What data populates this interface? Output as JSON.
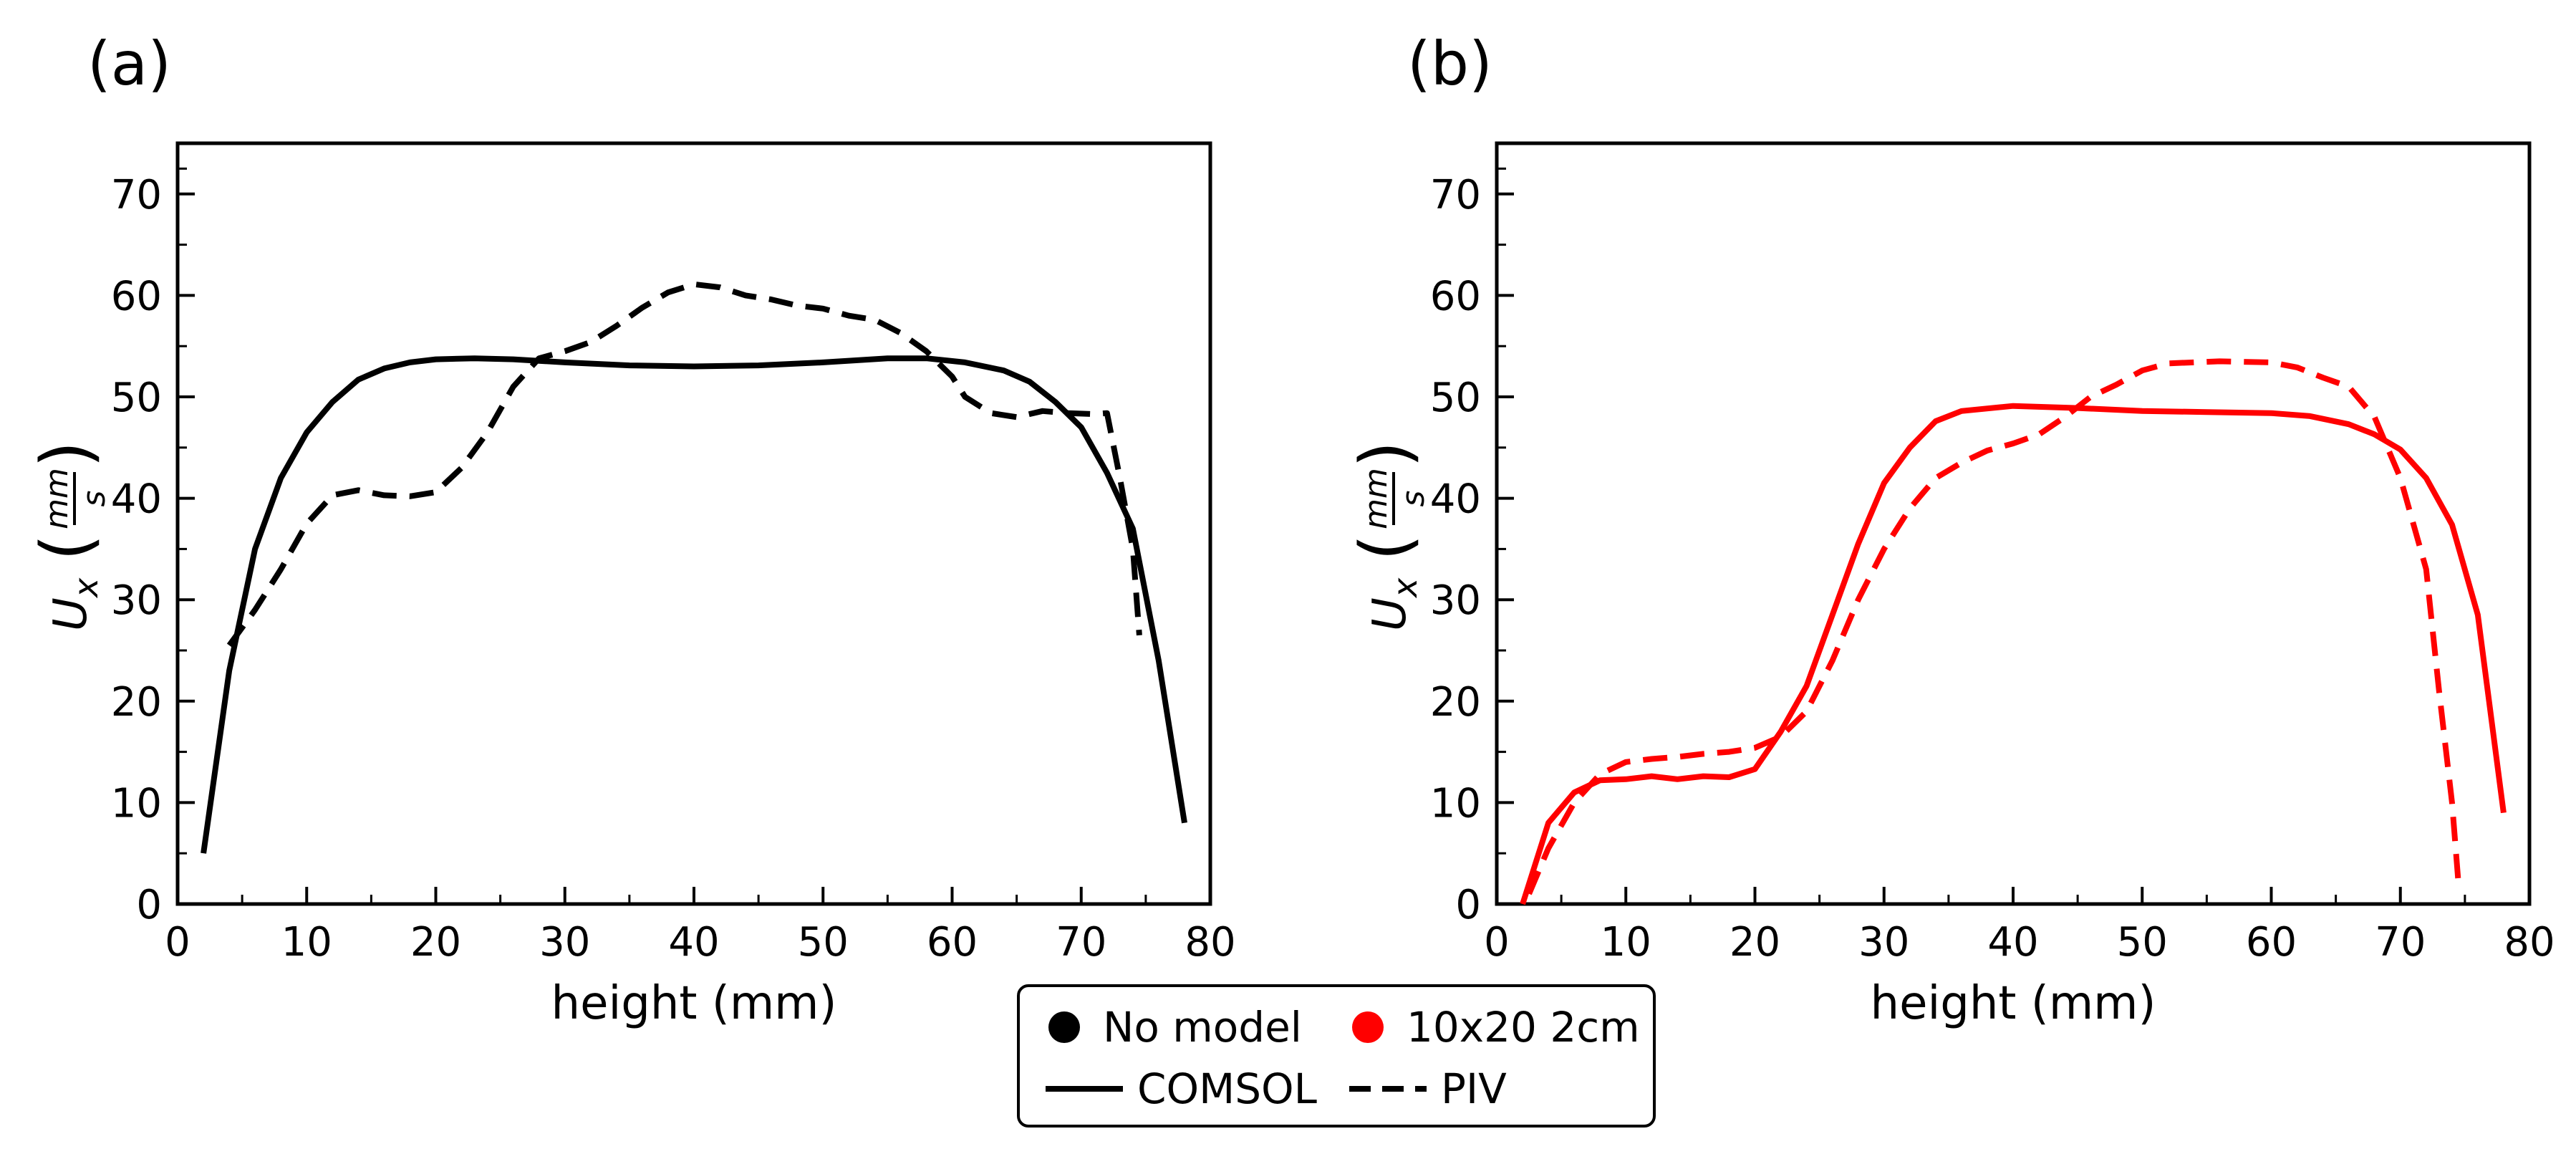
{
  "chart_data": [
    {
      "panel_label": "(a)",
      "type": "line",
      "xlabel": "height (mm)",
      "ylabel": {
        "base": "U",
        "subscript": "x",
        "unit_numerator": "mm",
        "unit_denominator": "s"
      },
      "xlim": [
        0,
        80
      ],
      "ylim": [
        0,
        75
      ],
      "xticks": [
        0,
        10,
        20,
        30,
        40,
        50,
        60,
        70,
        80
      ],
      "yticks": [
        0,
        10,
        20,
        30,
        40,
        50,
        60,
        70
      ],
      "grid": false,
      "series": [
        {
          "name": "COMSOL",
          "color": "#000000",
          "dash": "solid",
          "points": [
            [
              2,
              5
            ],
            [
              4,
              23
            ],
            [
              6,
              35
            ],
            [
              8,
              42
            ],
            [
              10,
              46.5
            ],
            [
              12,
              49.5
            ],
            [
              14,
              51.7
            ],
            [
              16,
              52.8
            ],
            [
              18,
              53.4
            ],
            [
              20,
              53.7
            ],
            [
              23,
              53.8
            ],
            [
              26,
              53.7
            ],
            [
              30,
              53.4
            ],
            [
              35,
              53.1
            ],
            [
              40,
              53
            ],
            [
              45,
              53.1
            ],
            [
              50,
              53.4
            ],
            [
              55,
              53.8
            ],
            [
              58,
              53.8
            ],
            [
              61,
              53.4
            ],
            [
              64,
              52.6
            ],
            [
              66,
              51.5
            ],
            [
              68,
              49.5
            ],
            [
              70,
              47
            ],
            [
              72,
              42.5
            ],
            [
              74,
              37
            ],
            [
              76,
              24
            ],
            [
              78,
              8
            ]
          ]
        },
        {
          "name": "PIV",
          "color": "#000000",
          "dash": "dashed",
          "points": [
            [
              4,
              25.5
            ],
            [
              6,
              29
            ],
            [
              8,
              33
            ],
            [
              10,
              37.5
            ],
            [
              12,
              40.3
            ],
            [
              14,
              40.8
            ],
            [
              16,
              40.3
            ],
            [
              18,
              40.2
            ],
            [
              20,
              40.6
            ],
            [
              22,
              43
            ],
            [
              24,
              46.5
            ],
            [
              26,
              51
            ],
            [
              28,
              53.8
            ],
            [
              30,
              54.5
            ],
            [
              32,
              55.4
            ],
            [
              34,
              57
            ],
            [
              36,
              58.8
            ],
            [
              38,
              60.3
            ],
            [
              40,
              61.1
            ],
            [
              42,
              60.8
            ],
            [
              44,
              60
            ],
            [
              46,
              59.6
            ],
            [
              48,
              59
            ],
            [
              50,
              58.7
            ],
            [
              52,
              58
            ],
            [
              54,
              57.6
            ],
            [
              56,
              56.3
            ],
            [
              58,
              54.5
            ],
            [
              60,
              52
            ],
            [
              61,
              50
            ],
            [
              63,
              48.4
            ],
            [
              65,
              48
            ],
            [
              67,
              48.6
            ],
            [
              69,
              48.4
            ],
            [
              71,
              48.3
            ],
            [
              72,
              48.4
            ],
            [
              73,
              42
            ],
            [
              74,
              35
            ],
            [
              74.5,
              26.5
            ]
          ]
        }
      ]
    },
    {
      "panel_label": "(b)",
      "type": "line",
      "xlabel": "height (mm)",
      "ylabel": {
        "base": "U",
        "subscript": "x",
        "unit_numerator": "mm",
        "unit_denominator": "s"
      },
      "xlim": [
        0,
        80
      ],
      "ylim": [
        0,
        75
      ],
      "xticks": [
        0,
        10,
        20,
        30,
        40,
        50,
        60,
        70,
        80
      ],
      "yticks": [
        0,
        10,
        20,
        30,
        40,
        50,
        60,
        70
      ],
      "grid": false,
      "series": [
        {
          "name": "COMSOL",
          "color": "#ff0000",
          "dash": "solid",
          "points": [
            [
              2,
              0
            ],
            [
              4,
              8
            ],
            [
              6,
              11
            ],
            [
              8,
              12.2
            ],
            [
              10,
              12.3
            ],
            [
              12,
              12.6
            ],
            [
              14,
              12.3
            ],
            [
              16,
              12.6
            ],
            [
              18,
              12.5
            ],
            [
              20,
              13.3
            ],
            [
              22,
              17
            ],
            [
              24,
              21.5
            ],
            [
              26,
              28.5
            ],
            [
              28,
              35.5
            ],
            [
              30,
              41.5
            ],
            [
              32,
              45
            ],
            [
              34,
              47.6
            ],
            [
              36,
              48.6
            ],
            [
              40,
              49.1
            ],
            [
              45,
              48.9
            ],
            [
              50,
              48.6
            ],
            [
              55,
              48.5
            ],
            [
              60,
              48.4
            ],
            [
              63,
              48.1
            ],
            [
              66,
              47.3
            ],
            [
              68,
              46.3
            ],
            [
              70,
              44.8
            ],
            [
              72,
              42
            ],
            [
              74,
              37.4
            ],
            [
              76,
              28.5
            ],
            [
              78,
              9
            ]
          ]
        },
        {
          "name": "PIV",
          "color": "#ff0000",
          "dash": "dashed",
          "points": [
            [
              2.5,
              1
            ],
            [
              4,
              5.5
            ],
            [
              6,
              10
            ],
            [
              8,
              12.8
            ],
            [
              10,
              14
            ],
            [
              12,
              14.3
            ],
            [
              14,
              14.5
            ],
            [
              16,
              14.8
            ],
            [
              18,
              15
            ],
            [
              20,
              15.4
            ],
            [
              22,
              16.5
            ],
            [
              24,
              19
            ],
            [
              26,
              24
            ],
            [
              28,
              30
            ],
            [
              30,
              35
            ],
            [
              32,
              39
            ],
            [
              34,
              42
            ],
            [
              36,
              43.5
            ],
            [
              38,
              44.7
            ],
            [
              40,
              45.4
            ],
            [
              42,
              46.3
            ],
            [
              44,
              48
            ],
            [
              46,
              50
            ],
            [
              48,
              51.2
            ],
            [
              50,
              52.6
            ],
            [
              52,
              53.3
            ],
            [
              56,
              53.5
            ],
            [
              60,
              53.4
            ],
            [
              62,
              52.9
            ],
            [
              64,
              51.9
            ],
            [
              66,
              51
            ],
            [
              68,
              48
            ],
            [
              70,
              42
            ],
            [
              72,
              33
            ],
            [
              73,
              21
            ],
            [
              74,
              10
            ],
            [
              74.5,
              2
            ]
          ]
        }
      ]
    }
  ],
  "legend": {
    "placement": "bottom-center",
    "entries": [
      {
        "label": "No model",
        "marker": "circle",
        "color": "#000000"
      },
      {
        "label": "10x20 2cm",
        "marker": "circle",
        "color": "#ff0000"
      },
      {
        "label": "COMSOL",
        "marker": "solid-line",
        "color": "#000000"
      },
      {
        "label": "PIV",
        "marker": "dashed-line",
        "color": "#000000"
      }
    ]
  }
}
